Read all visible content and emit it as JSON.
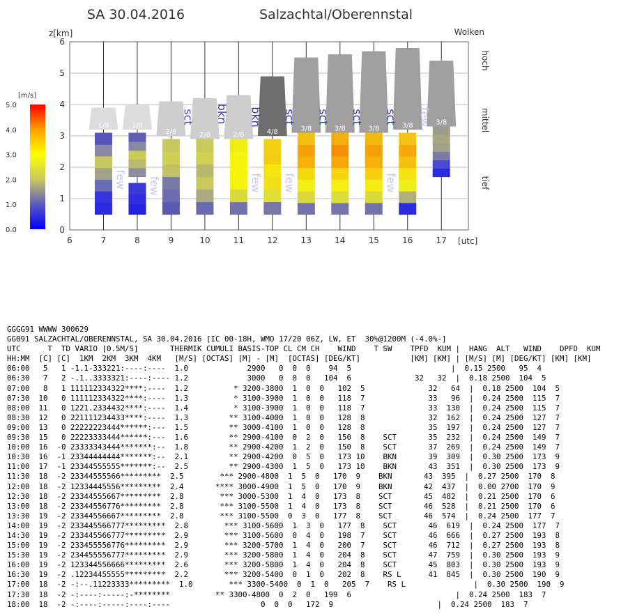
{
  "header": {
    "date": "SA 30.04.2016",
    "region": "Salzachtal/Oberennstal"
  },
  "chart_data": {
    "type": "bar",
    "ylabel": "z[km]",
    "xlabel": "[utc]",
    "cloud_label": "Wolken",
    "level_labels": [
      "hoch",
      "mittel",
      "tief"
    ],
    "colorbar": {
      "unit": "[m/s]",
      "ticks": [
        "5.0",
        "4.0",
        "3.0",
        "2.0",
        "1.0",
        "0.0"
      ],
      "range": [
        0,
        5
      ]
    },
    "xlim": [
      6,
      17.8
    ],
    "ylim": [
      0,
      6
    ],
    "x_ticks": [
      "6",
      "7",
      "8",
      "9",
      "10",
      "11",
      "12",
      "13",
      "14",
      "15",
      "16",
      "17"
    ],
    "y_ticks": [
      "0",
      "1",
      "2",
      "3",
      "4",
      "5",
      "6"
    ],
    "thermals": [
      {
        "x": 7,
        "bottom": 0.5,
        "top": 3.1,
        "colors": [
          "#2a2ae0",
          "#3636dc",
          "#6b6bb5",
          "#a2a28a",
          "#c7c760",
          "#8a8aa8",
          "#5555bb"
        ]
      },
      {
        "x": 8,
        "bottom": 0.5,
        "top": 1.5,
        "colors": [
          "#2424e0",
          "#2f2fdd",
          "#3a3ada"
        ]
      },
      {
        "x": 8,
        "bottom": 1.7,
        "top": 3.1,
        "colors": [
          "#8d8da0",
          "#b9b970",
          "#c9c958",
          "#8686a5",
          "#5e5eb5"
        ]
      },
      {
        "x": 9,
        "bottom": 0.5,
        "top": 2.9,
        "colors": [
          "#5a5ab5",
          "#6c6cb0",
          "#7a7aa8",
          "#c2c265",
          "#cfcf55",
          "#c8c860"
        ]
      },
      {
        "x": 10,
        "bottom": 0.5,
        "top": 2.9,
        "colors": [
          "#6a6ab0",
          "#a9a982",
          "#caca5c",
          "#b9b96e",
          "#d2d250",
          "#c9c95c"
        ]
      },
      {
        "x": 11,
        "bottom": 0.5,
        "top": 2.9,
        "colors": [
          "#7373aa",
          "#dada3c",
          "#f4f410",
          "#f6f60a",
          "#f4f40e",
          "#eeee14"
        ]
      },
      {
        "x": 12,
        "bottom": 0.5,
        "top": 2.9,
        "colors": [
          "#7676a8",
          "#e0e036",
          "#f0e018",
          "#f6e610",
          "#f4cc12",
          "#f2d016"
        ]
      },
      {
        "x": 13,
        "bottom": 0.5,
        "top": 3.1,
        "colors": [
          "#7373aa",
          "#d8d83e",
          "#f2f014",
          "#f4d80e",
          "#f6b00c",
          "#f6a00a",
          "#f2c012"
        ]
      },
      {
        "x": 14,
        "bottom": 0.5,
        "top": 3.1,
        "colors": [
          "#7474a9",
          "#dcdc3a",
          "#f4f012",
          "#f6d40e",
          "#f6a80a",
          "#f49008",
          "#f2b010"
        ]
      },
      {
        "x": 15,
        "bottom": 0.5,
        "top": 3.1,
        "colors": [
          "#7373aa",
          "#dada3c",
          "#f4ec12",
          "#f6d00e",
          "#f6b00c",
          "#f6a00a",
          "#f2b812"
        ]
      },
      {
        "x": 16,
        "bottom": 0.5,
        "top": 3.1,
        "colors": [
          "#2a2ae0",
          "#b0b07a",
          "#eeee18",
          "#f6e410",
          "#f6c00e",
          "#f6a80a",
          "#f2c414"
        ]
      },
      {
        "x": 17,
        "bottom": 1.7,
        "top": 3.3,
        "colors": [
          "#2a2ae0",
          "#4a4ad0",
          "#7a7aa8",
          "#a0a088",
          "#a8a880",
          "#9c9c8e"
        ]
      }
    ],
    "clouds": [
      {
        "x": 7,
        "base": 3.2,
        "top": 3.9,
        "cover": "1/8",
        "shade": "#dcdcdc",
        "cover_color": "#ffffff"
      },
      {
        "x": 8,
        "base": 3.2,
        "top": 4.0,
        "cover": "1/8",
        "shade": "#dcdcdc",
        "cover_color": "#ffffff"
      },
      {
        "x": 9,
        "base": 3.0,
        "top": 4.1,
        "cover": "2/8",
        "shade": "#cecece",
        "cover_color": "#ffffff"
      },
      {
        "x": 10,
        "base": 2.9,
        "top": 4.2,
        "cover": "2/8",
        "shade": "#cecece",
        "cover_color": "#ffffff"
      },
      {
        "x": 11,
        "base": 2.9,
        "top": 4.3,
        "cover": "2/8",
        "shade": "#cecece",
        "cover_color": "#ffffff"
      },
      {
        "x": 12,
        "base": 3.0,
        "top": 4.9,
        "cover": "4/8",
        "shade": "#6e6e6e",
        "cover_color": "#ffffff"
      },
      {
        "x": 13,
        "base": 3.1,
        "top": 5.5,
        "cover": "3/8",
        "shade": "#9f9f9f",
        "cover_color": "#ffffff"
      },
      {
        "x": 14,
        "base": 3.1,
        "top": 5.6,
        "cover": "3/8",
        "shade": "#9f9f9f",
        "cover_color": "#ffffff"
      },
      {
        "x": 15,
        "base": 3.1,
        "top": 5.7,
        "cover": "3/8",
        "shade": "#9f9f9f",
        "cover_color": "#ffffff"
      },
      {
        "x": 16,
        "base": 3.2,
        "top": 5.8,
        "cover": "3/8",
        "shade": "#9f9f9f",
        "cover_color": "#ffffff"
      },
      {
        "x": 17,
        "base": 3.3,
        "top": 5.4,
        "cover": "3/8",
        "shade": "#9f9f9f",
        "cover_color": "#ffffff"
      }
    ],
    "cloud_type_labels": [
      {
        "text": "few",
        "x": 7.5,
        "y": 1.6,
        "color": "#c4c8ee"
      },
      {
        "text": "few",
        "x": 8.5,
        "y": 1.4,
        "color": "#c4c8ee"
      },
      {
        "text": "sct",
        "x": 9.5,
        "y": 3.6,
        "color": "#4444cc"
      },
      {
        "text": "bkn",
        "x": 10.5,
        "y": 3.7,
        "color": "#3333bb"
      },
      {
        "text": "bkn",
        "x": 11.5,
        "y": 3.6,
        "color": "#3333bb"
      },
      {
        "text": "few",
        "x": 11.5,
        "y": 1.5,
        "color": "#c4c8ee"
      },
      {
        "text": "few",
        "x": 12.5,
        "y": 1.5,
        "color": "#c4c8ee"
      },
      {
        "text": "sct",
        "x": 12.5,
        "y": 3.6,
        "color": "#3333bb"
      },
      {
        "text": "sct",
        "x": 13.5,
        "y": 3.6,
        "color": "#3333bb"
      },
      {
        "text": "sct",
        "x": 14.5,
        "y": 3.6,
        "color": "#3333bb"
      },
      {
        "text": "sct",
        "x": 15.5,
        "y": 3.6,
        "color": "#3333bb"
      },
      {
        "text": "few",
        "x": 15.5,
        "y": 1.5,
        "color": "#c4c8ee"
      },
      {
        "text": "few",
        "x": 16.5,
        "y": 3.6,
        "color": "#c4c8ee"
      }
    ]
  },
  "report": {
    "lines": [
      "GGGG91 WWWW 300629",
      "GG091 SALZACHTAL/OBERENNSTAL, SA 30.04.2016 [IC 00-18H, WMO 17/20 06Z, LW, ET  30%@1200M (-4.0%-]",
      "UTC      T  TD VARIO [0.5M/S]       THERMIK CUMULI BASIS-TOP CL CM CH    WIND    T SW    TPFD  KUM |  HANG  ALT   WIND    DPFD  KUM",
      "HH:MM  [C] [C]  1KM  2KM  3KM  4KM   [M/S] [OCTAS] [M] - [M]  [OCTAS] [DEG/KT]           [KM] [KM] | [M/S] [M] [DEG/KT] [KM] [KM]",
      "06:00   5   1 -1.1-333221:----:----  1.0             2900   0  0  0    94  5                      |  0.15 2500   95  4",
      "06:30   7   2 -.1..3333321:----:---- 1.2             3000   0  0  0   104  6              32   32  |  0.18 2500  104  5",
      "07:00   8   1 111112334322****:----  1.2          * 3200-3800  1  0  0   102  5              32   64  |  0.18 2500  104  5",
      "07:30  10   0 111112334322****:----  1.3          * 3100-3900  1  0  0   118  7              33   96  |  0.24 2500  115  7",
      "08:00  11   0 1221.2334432****:----  1.4          * 3100-3900  1  0  0   118  7              33  130  |  0.24 2500  115  7",
      "08:30  12   0 221111234433****:----  1.3         ** 3100-4000  1  0  0   128  8              32  162  |  0.24 2500  127  7",
      "09:00  13   0 22222223444******:---  1.5         ** 3000-4100  1  0  0   128  8              35  197  |  0.24 2500  127  7",
      "09:30  15   0 22223333444******:---  1.6         ** 2900-4100  0  2  0   150  8    SCT       35  232  |  0.24 2500  149  7",
      "10:00  16  -0 23333343444*******:--  1.8         ** 2900-4200  1  2  0   150  8    SCT       37  269  |  0.24 2500  149  7",
      "10:30  16  -1 23344444444*******:--  2.1         ** 2900-4200  0  5  0   173 10    BKN       39  309  |  0.30 2500  173  9",
      "11:00  17  -1 23344555555*******:--  2.5         ** 2900-4300  1  5  0   173 10    BKN       43  351  |  0.30 2500  173  9",
      "11:30  18  -2 23344555566*********  2.5        *** 2900-4800  1  5  0   170  9    BKN       43  395  |  0.27 2500  170  8",
      "12:00  18  -2 12334445556*********  2.4       **** 3000-4900  1  5  0   170  9    BKN       42  437  |  0.00 2700  170  9",
      "12:30  18  -2 23344555667*********  2.8        *** 3000-5300  1  4  0   173  8    SCT       45  482  |  0.21 2500  170  6",
      "13:00  18  -2 23344556776*********  2.8        *** 3100-5500  1  4  0   173  8    SCT       46  528  |  0.21 2500  170  6",
      "13:30  19  -2 23344556667*********  2.8        *** 3100-5500  0  3  0   177  8    SCT       46  574  |  0.24 2500  177  7",
      "14:00  19  -2 233445566777*********  2.8        *** 3100-5600  1  3  0   177  8    SCT       46  619  |  0.24 2500  177  7",
      "14:30  19  -2 233445566777*********  2.9        *** 3100-5600  0  4  0   198  7    SCT       46  666  |  0.27 2500  193  8",
      "15:00  19  -2 233455556776*********  2.9        *** 3200-5700  1  4  0   200  7    SCT       46  712  |  0.27 2500  193  8",
      "15:30  19  -2 234455556777*********  2.9        *** 3200-5800  1  4  0   204  8    SCT       47  759  |  0.30 2500  193  9",
      "16:00  19  -2 123344556666*********  2.6        *** 3200-5800  1  4  0   204  8    SCT       45  803  |  0.30 2500  193  9",
      "16:30  19  -2 .12234455555*********  2.2        *** 3200-5400  0  1  0   202  8    RS L      41  845  |  0.30 2500  190  9",
      "17:00  18  -2 -:--.11223333*********  1.0        *** 3300-5400  0  1  0   205  7    RS L               |  0.30 2500  190  9",
      "17:30  18  -2 -:----:-----:-********          ** 3300-4800  0  2  0   199  6                       |  0.24 2500  183  7",
      "18:00  18  -2 -:----:-----:----:----                    0  0  0   172  9                       |  0.24 2500  183  7"
    ]
  }
}
